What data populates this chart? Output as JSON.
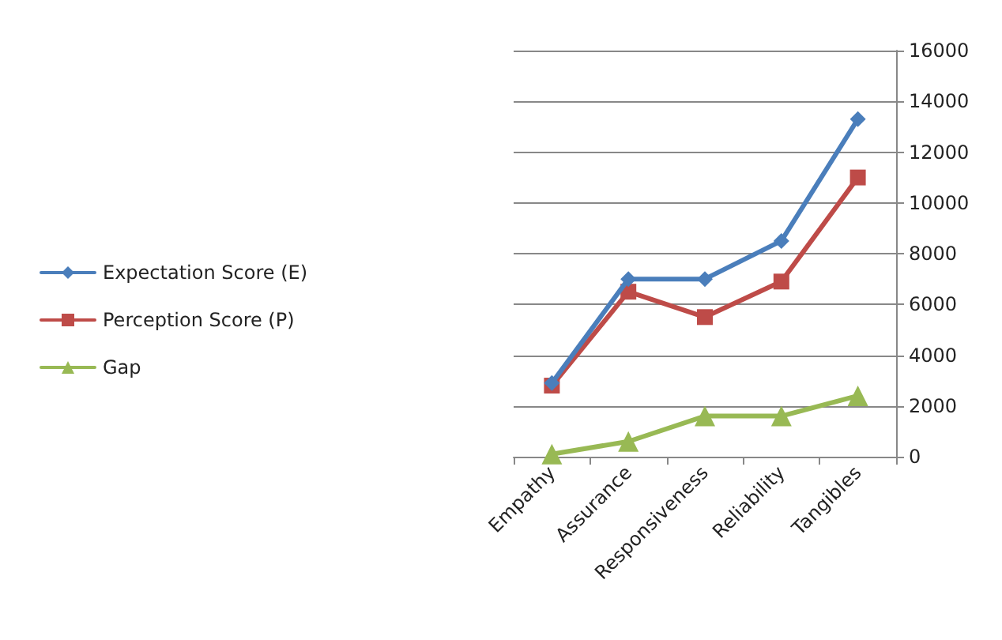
{
  "chart_data": {
    "type": "line",
    "categories": [
      "Empathy",
      "Assurance",
      "Responsiveness",
      "Reliability",
      "Tangibles"
    ],
    "series": [
      {
        "name": "Expectation Score (E)",
        "color": "#4a7ebb",
        "marker": "diamond",
        "values": [
          2900,
          7000,
          7000,
          8500,
          13300
        ]
      },
      {
        "name": "Perception Score (P)",
        "color": "#be4b48",
        "marker": "square",
        "values": [
          2800,
          6500,
          5500,
          6900,
          11000
        ]
      },
      {
        "name": "Gap",
        "color": "#98b954",
        "marker": "triangle",
        "values": [
          100,
          600,
          1600,
          1600,
          2400
        ]
      }
    ],
    "ylim": [
      0,
      16000
    ],
    "yticks": [
      0,
      2000,
      4000,
      6000,
      8000,
      10000,
      12000,
      14000,
      16000
    ],
    "grid": "y",
    "legend": "left",
    "line_style": "solid"
  }
}
